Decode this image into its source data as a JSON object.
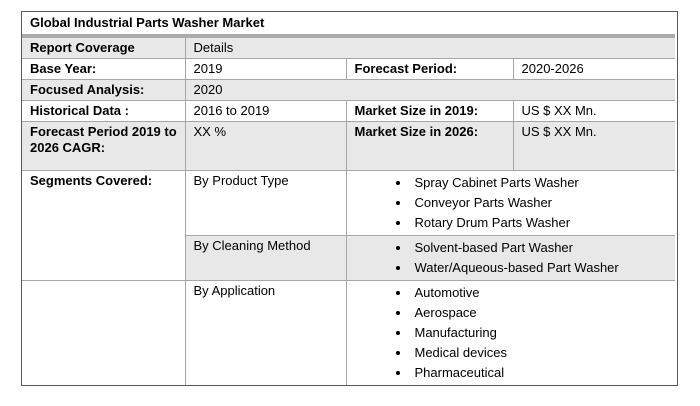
{
  "report": {
    "title": "Global Industrial Parts Washer Market",
    "coverage_label": "Report Coverage",
    "coverage_value": "Details",
    "base_year_label": "Base Year:",
    "base_year_value": "2019",
    "forecast_period_label": "Forecast Period:",
    "forecast_period_value": "2020-2026",
    "focused_label": "Focused Analysis:",
    "focused_value": "2020",
    "historical_label": "Historical Data :",
    "historical_value": "2016 to 2019",
    "market_2019_label": "Market Size in 2019:",
    "market_2019_value": "US $ XX Mn.",
    "cagr_label": "Forecast Period 2019 to 2026 CAGR:",
    "cagr_value": "XX %",
    "market_2026_label": "Market Size in 2026:",
    "market_2026_value": "US $ XX Mn.",
    "segments_label": "Segments Covered:",
    "segments": [
      {
        "group": "By Product Type",
        "items": [
          "Spray Cabinet Parts Washer",
          "Conveyor Parts Washer",
          "Rotary Drum Parts Washer"
        ]
      },
      {
        "group": "By Cleaning Method",
        "items": [
          "Solvent-based Part Washer",
          "Water/Aqueous-based Part Washer"
        ]
      },
      {
        "group": "By Application",
        "items": [
          "Automotive",
          "Aerospace",
          "Manufacturing",
          "Medical devices",
          "Pharmaceutical"
        ]
      }
    ]
  },
  "colors": {
    "row_shade": "#e8e8e8",
    "title_band": "#ababab",
    "grid_border": "#a6a6a6",
    "outer_border": "#595959",
    "text": "#000000"
  }
}
